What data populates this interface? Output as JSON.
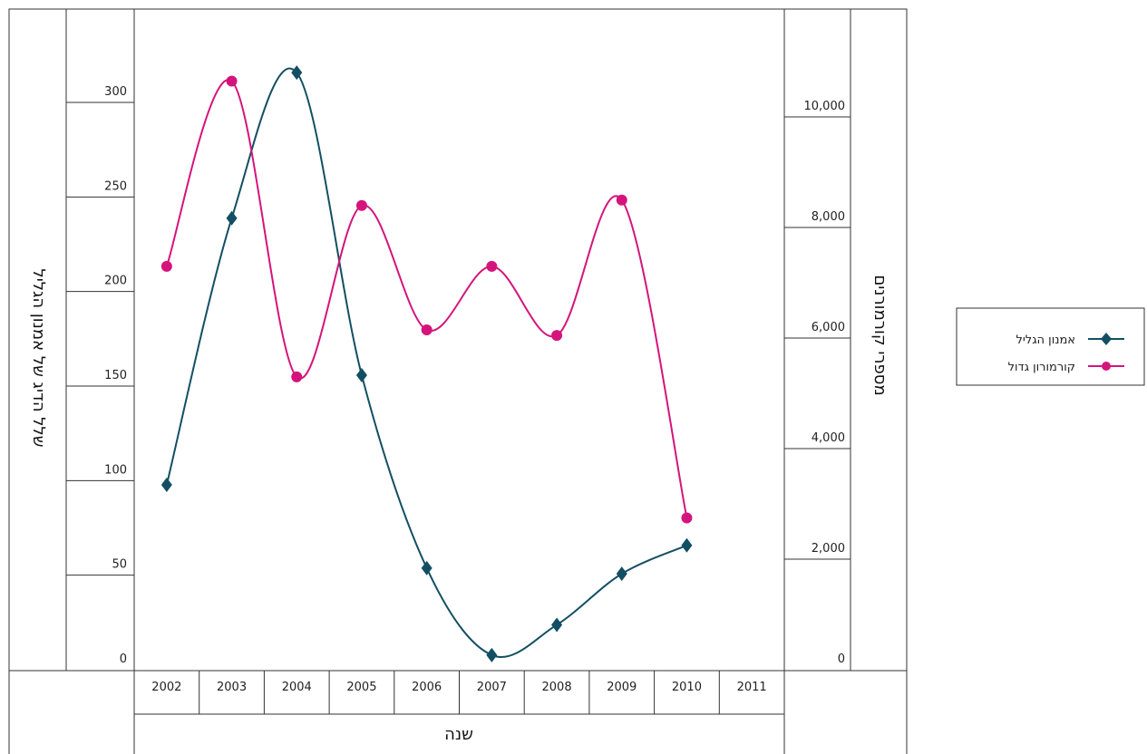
{
  "chart_data": {
    "type": "line",
    "categories": [
      "2002",
      "2003",
      "2004",
      "2005",
      "2006",
      "2007",
      "2008",
      "2009",
      "2010",
      "2011"
    ],
    "xlabel": "שנה",
    "ylabel_left": "שלל הדיג של אמנון הגליל",
    "ylabel_right": "מספרי קורמורנים",
    "y_left": {
      "ticks": [
        "0",
        "50",
        "100",
        "150",
        "200",
        "250",
        "300"
      ],
      "ylim": [
        0,
        300
      ]
    },
    "y_right": {
      "ticks": [
        "0",
        "2,000",
        "4,000",
        "6,000",
        "8,000",
        "10,000"
      ],
      "ylim": [
        0,
        10000
      ]
    },
    "series": [
      {
        "name": "אמנון הגליל",
        "axis": "left",
        "marker": "diamond",
        "color": "#134f63",
        "x": [
          2002.5,
          2003.5,
          2004.5,
          2005.5,
          2006.5,
          2007.5,
          2008.5,
          2009.5,
          2010.5
        ],
        "values": [
          92,
          233,
          310,
          150,
          48,
          2,
          18,
          45,
          60
        ]
      },
      {
        "name": "קורמורון גדול",
        "axis": "right",
        "marker": "circle",
        "color": "#d4147c",
        "x": [
          2002.5,
          2003.5,
          2004.5,
          2005.5,
          2006.5,
          2007.5,
          2008.5,
          2009.5,
          2010.5
        ],
        "values": [
          7100,
          10450,
          5100,
          8200,
          5950,
          7100,
          5850,
          8300,
          2550
        ]
      }
    ],
    "legend_position": "right",
    "grid": false
  }
}
